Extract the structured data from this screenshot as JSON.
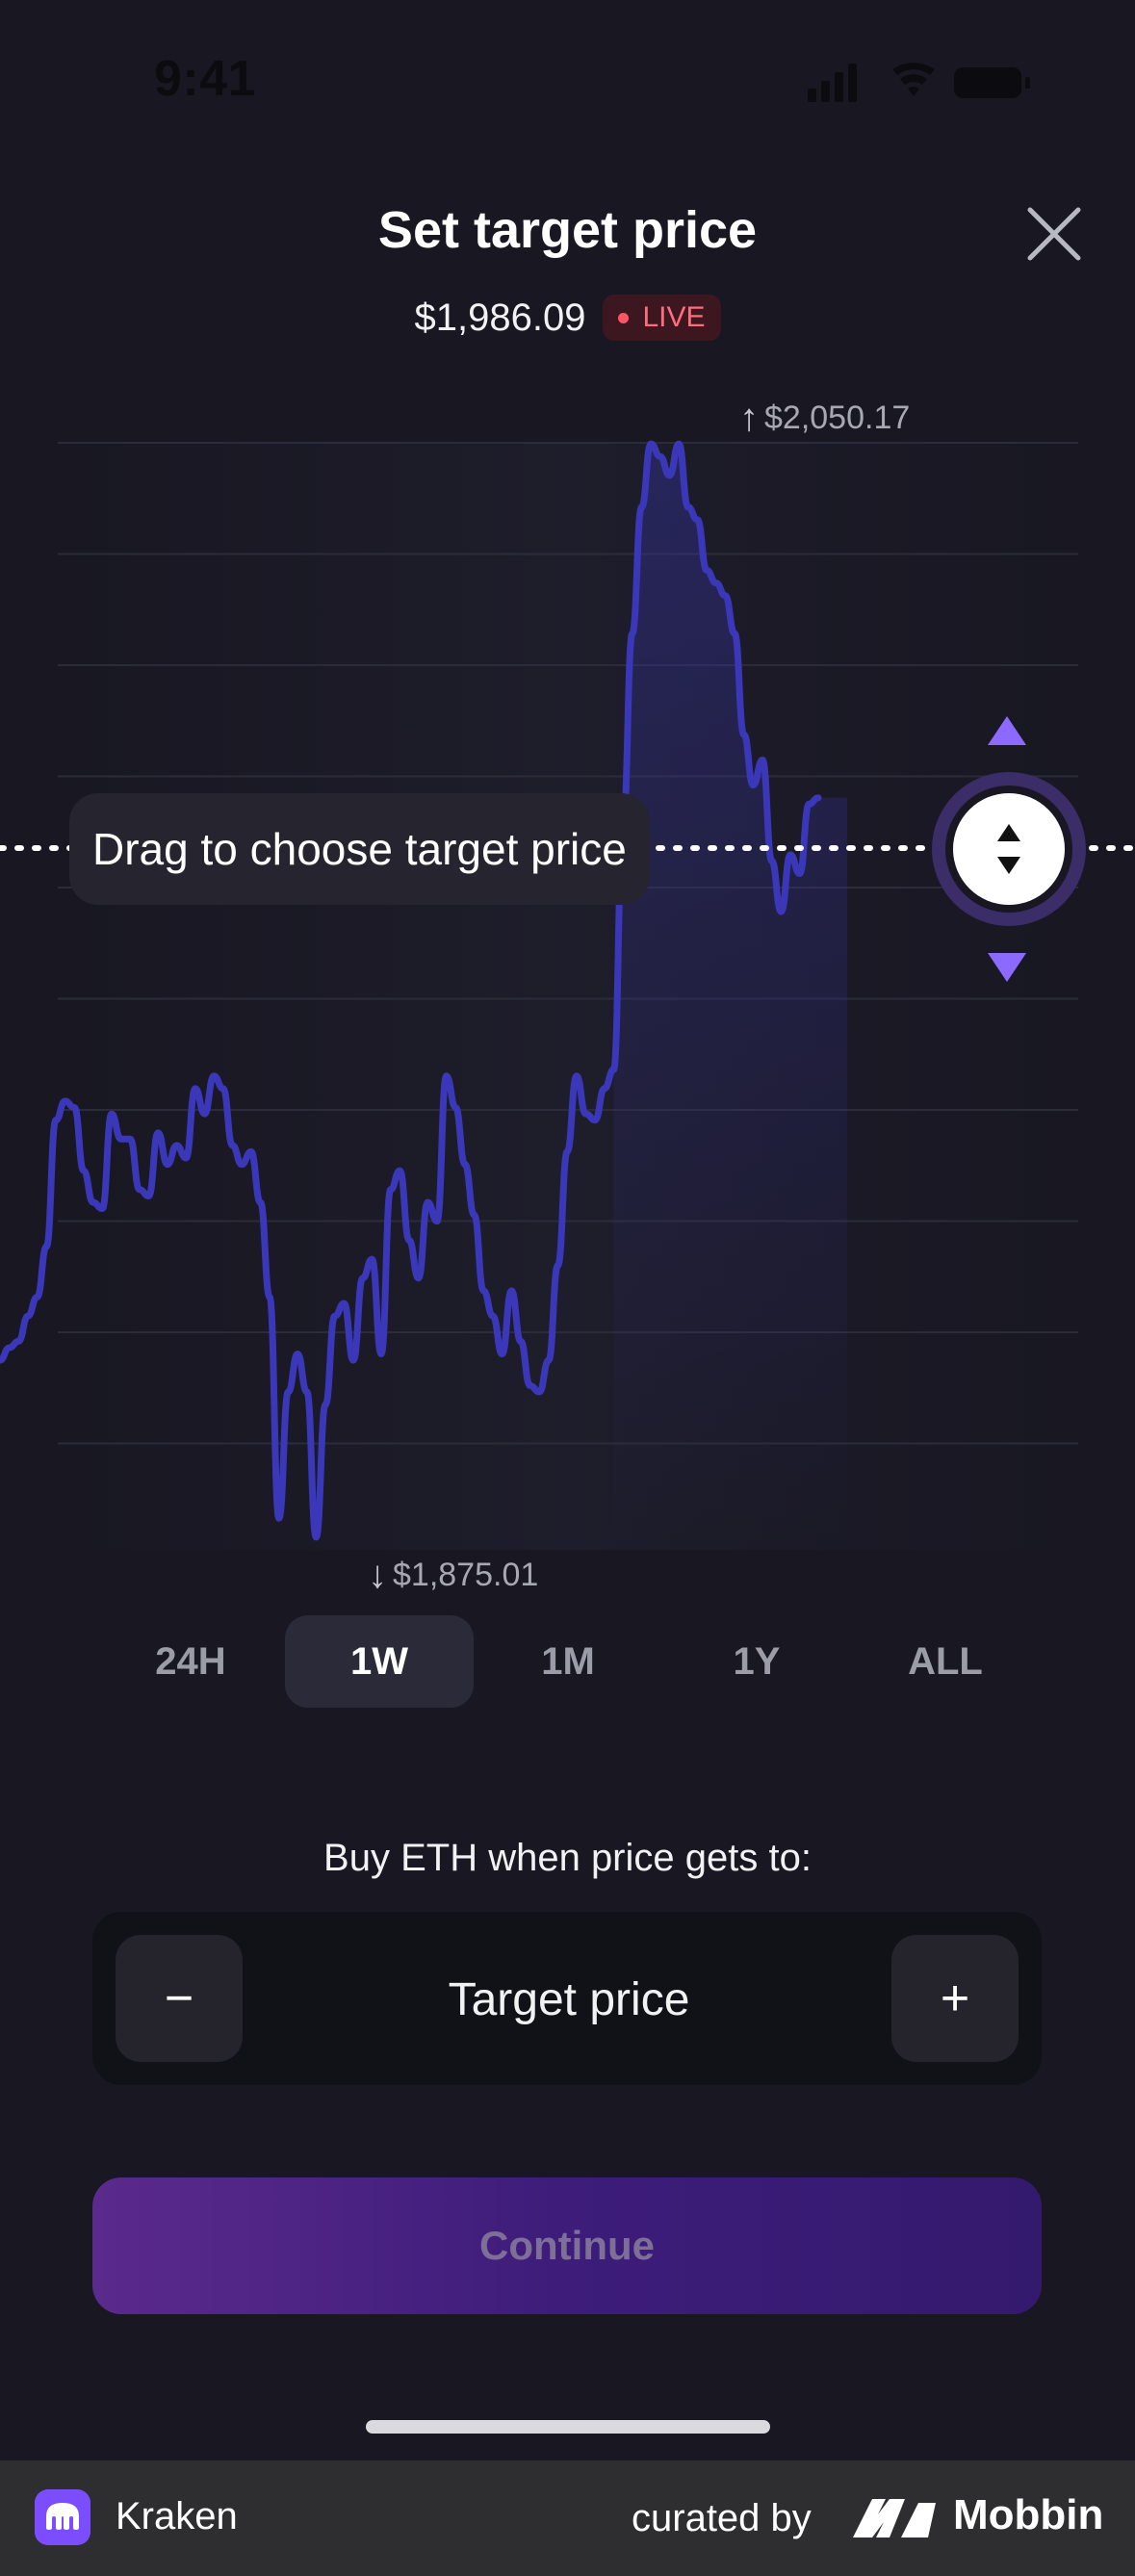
{
  "status_bar": {
    "time": "9:41"
  },
  "header": {
    "title": "Set target price",
    "current_price": "$1,986.09",
    "live_label": "LIVE"
  },
  "chart": {
    "high_label": "$2,050.17",
    "low_label": "$1,875.01",
    "drag_hint": "Drag to choose target price"
  },
  "chart_data": {
    "type": "line",
    "series": [
      {
        "values": [
          1905,
          1907,
          1908,
          1912,
          1915,
          1923,
          1943,
          1946,
          1945,
          1935,
          1930,
          1929,
          1944,
          1940,
          1940,
          1932,
          1931,
          1941,
          1936,
          1939,
          1937,
          1948,
          1944,
          1950,
          1948,
          1939,
          1936,
          1938,
          1930,
          1915,
          1880,
          1900,
          1906,
          1900,
          1877,
          1898,
          1912,
          1914,
          1905,
          1918,
          1921,
          1906,
          1932,
          1935,
          1924,
          1918,
          1930,
          1927,
          1950,
          1945,
          1936,
          1928,
          1916,
          1912,
          1906,
          1916,
          1908,
          1901,
          1900,
          1905,
          1920,
          1938,
          1950,
          1944,
          1943,
          1948,
          1951,
          1990,
          2020,
          2040,
          2050,
          2048,
          2045,
          2050,
          2040,
          2038,
          2030,
          2028,
          2026,
          2020,
          2004,
          1996,
          2000,
          1984,
          1976,
          1985,
          1982,
          1993,
          1994
        ],
        "color": "#3a38b8"
      }
    ],
    "ylim": [
      1875.01,
      2050.17
    ],
    "grid": true,
    "target_price": 1986.09
  },
  "range_tabs": [
    {
      "label": "24H",
      "active": false
    },
    {
      "label": "1W",
      "active": true
    },
    {
      "label": "1M",
      "active": false
    },
    {
      "label": "1Y",
      "active": false
    },
    {
      "label": "ALL",
      "active": false
    }
  ],
  "order": {
    "prompt": "Buy ETH when price gets to:",
    "target_placeholder": "Target price",
    "minus_label": "−",
    "plus_label": "+",
    "continue_label": "Continue"
  },
  "footer": {
    "app_name": "Kraken",
    "curated_by": "curated by",
    "brand": "Mobbin"
  },
  "colors": {
    "background": "#181722",
    "line": "#3a38b8",
    "accent": "#8c69ff",
    "live": "#ff6d7c"
  }
}
